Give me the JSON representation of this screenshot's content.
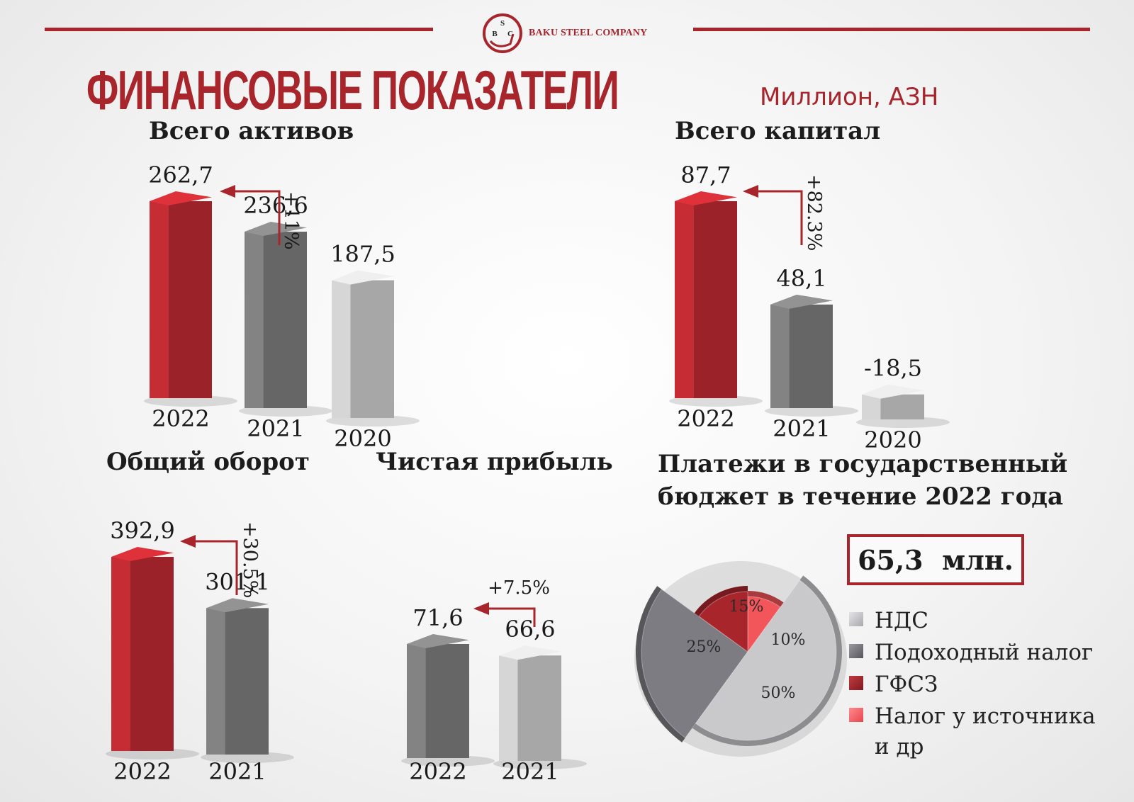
{
  "header": {
    "company_name": "BAKU STEEL COMPANY",
    "logo_letters": [
      "S",
      "B",
      "C"
    ],
    "title": "ФИНАНСОВЫЕ ПОКАЗАТЕЛИ",
    "unit": "Миллион, АЗН"
  },
  "colors": {
    "accent": "#a8252c",
    "bar_2022": "#a8252c",
    "bar_2021": "#6f6f6f",
    "bar_2020": "#b5b5b5"
  },
  "chart_data": [
    {
      "type": "bar",
      "title": "Всего активов",
      "categories": [
        "2022",
        "2021",
        "2020"
      ],
      "values": [
        262.7,
        236.6,
        187.5
      ],
      "value_labels": [
        "262,7",
        "236,6",
        "187,5"
      ],
      "change_label": "+11%"
    },
    {
      "type": "bar",
      "title": "Всего капитал",
      "categories": [
        "2022",
        "2021",
        "2020"
      ],
      "values": [
        87.7,
        48.1,
        -18.5
      ],
      "value_labels": [
        "87,7",
        "48,1",
        "-18,5"
      ],
      "change_label": "+82.3%"
    },
    {
      "type": "bar",
      "title": "Общий оборот",
      "categories": [
        "2022",
        "2021"
      ],
      "values": [
        392.9,
        301.1
      ],
      "value_labels": [
        "392,9",
        "301,1"
      ],
      "change_label": "+30.5%"
    },
    {
      "type": "bar",
      "title": "Чистая прибыль",
      "categories": [
        "2022",
        "2021"
      ],
      "values": [
        71.6,
        66.6
      ],
      "value_labels": [
        "71,6",
        "66,6"
      ],
      "change_label": "+7.5%"
    },
    {
      "type": "pie",
      "title": "Платежи в государственный бюджет в течение 2022 года",
      "total_label": "65,3  млн.",
      "slices": [
        {
          "name": "НДС",
          "value": 50,
          "label": "50%",
          "color": "#c9c9cc"
        },
        {
          "name": "Подоходный налог",
          "value": 25,
          "label": "25%",
          "color": "#7c7c82"
        },
        {
          "name": "ГФСЗ",
          "value": 15,
          "label": "15%",
          "color": "#a8252c"
        },
        {
          "name": "Налог у источника и др",
          "value": 10,
          "label": "10%",
          "color": "#f2555a"
        }
      ]
    }
  ]
}
